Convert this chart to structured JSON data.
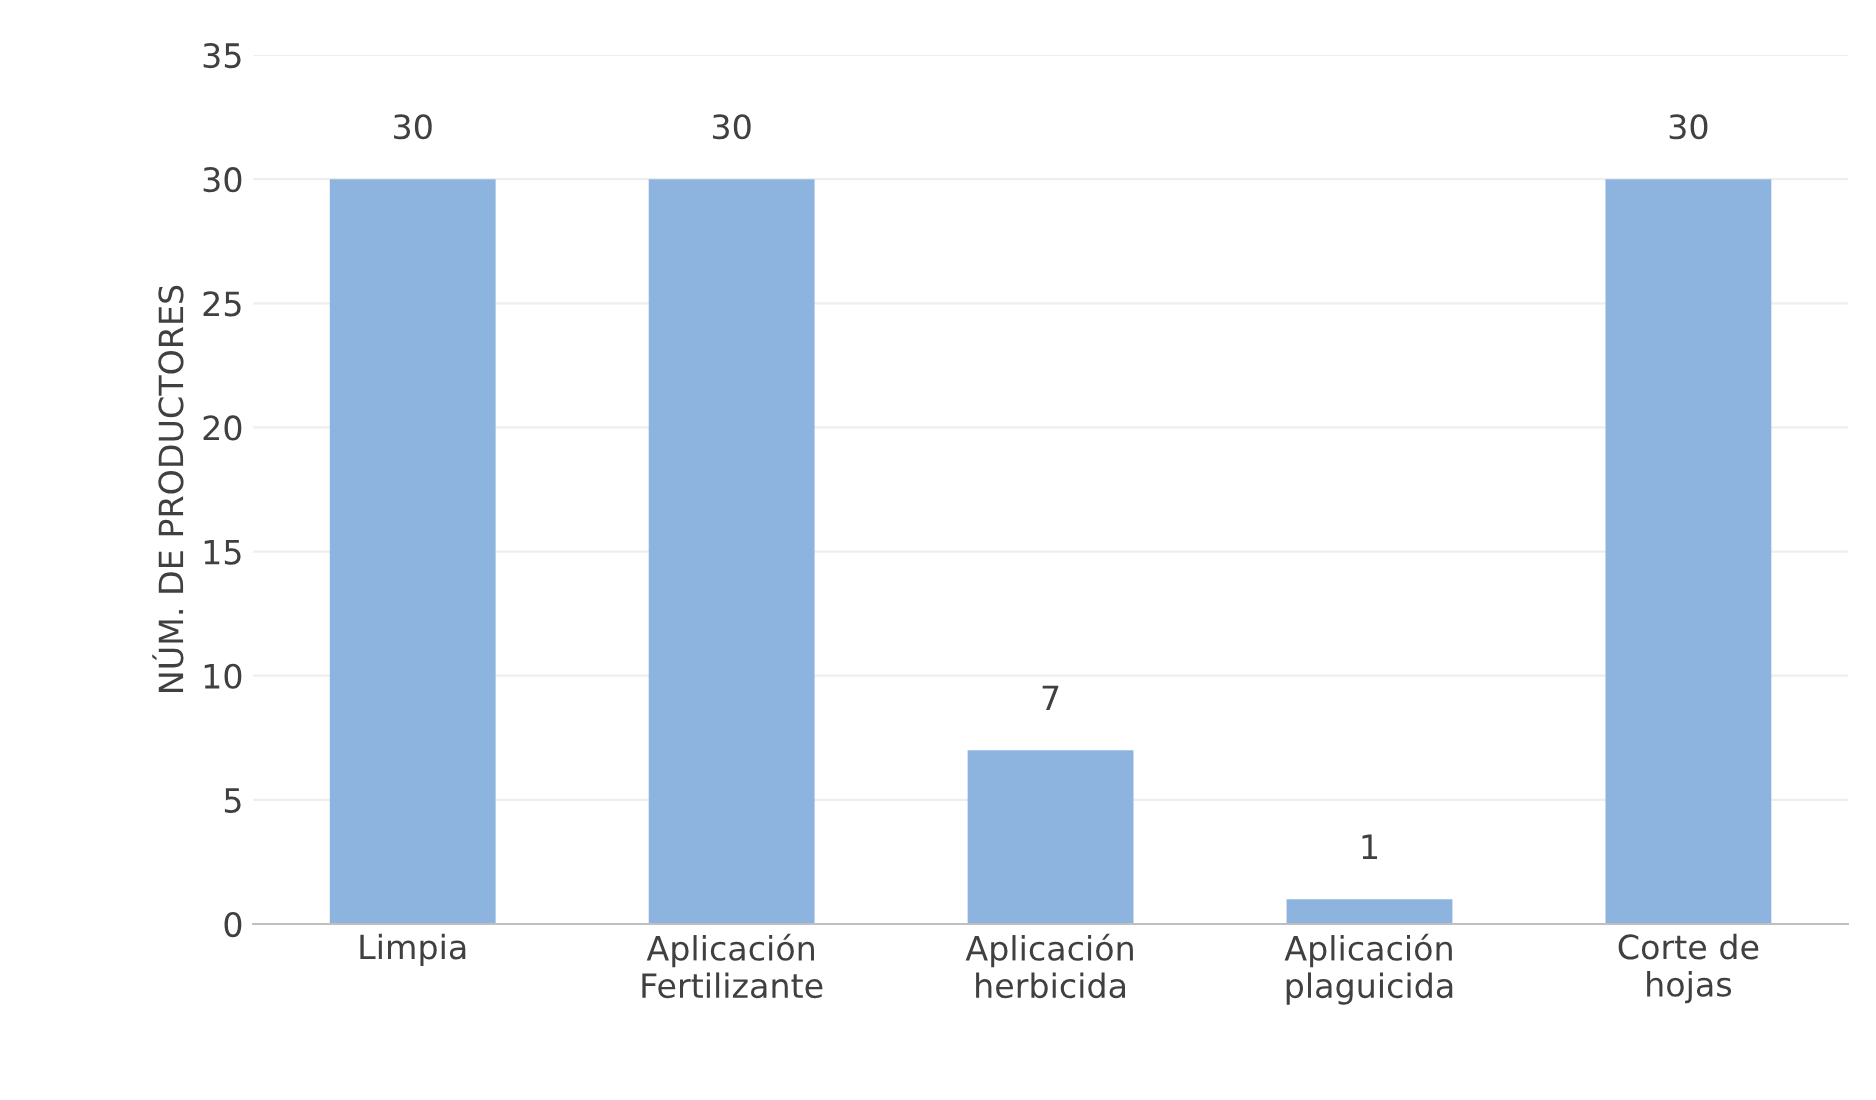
{
  "chart_data": {
    "type": "bar",
    "ylabel": "NÚM. DE PRODUCTORES",
    "categories": [
      "Limpia",
      "Aplicación\nFertilizante",
      "Aplicación\nherbicida",
      "Aplicación\nplaguicida",
      "Corte de\nhojas"
    ],
    "values": [
      30,
      30,
      7,
      1,
      30
    ],
    "color": "#8cb4de",
    "ylim": [
      0,
      35
    ],
    "yticks": [
      0,
      5,
      10,
      15,
      20,
      25,
      30,
      35
    ],
    "grid": "y",
    "data_labels": true
  }
}
